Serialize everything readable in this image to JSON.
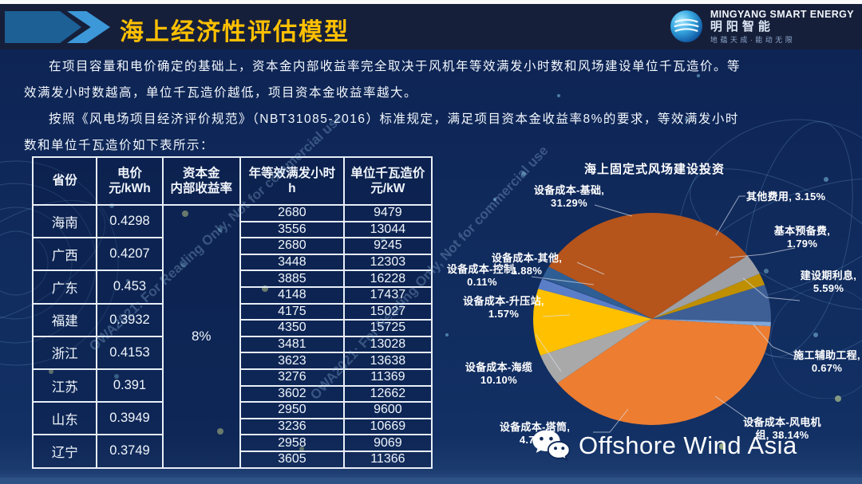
{
  "header": {
    "title": "海上经济性评估模型",
    "logo": {
      "line1": "MINGYANG SMART ENERGY",
      "line2": "明阳智能",
      "line3": "地蕴天成·能动无限"
    }
  },
  "intro": {
    "p1": "在项目容量和电价确定的基础上，资本金内部收益率完全取决于风机年等效满发小时数和风场建设单位千瓦造价。等效满发小时数越高，单位千瓦造价越低，项目资本金收益率越大。",
    "p2": "按照《风电场项目经济评价规范》（NBT31085-2016）标准规定，满足项目资本金收益率8%的要求，等效满发小时数和单位千瓦造价如下表所示："
  },
  "table": {
    "headers": [
      [
        "省份"
      ],
      [
        "电价",
        "元/kWh"
      ],
      [
        "资本金",
        "内部收益率"
      ],
      [
        "年等效满发小时",
        "h"
      ],
      [
        "单位千瓦造价",
        "元/kW"
      ]
    ],
    "rate": "8%",
    "provinces": [
      {
        "name": "海南",
        "price": "0.4298",
        "rows": [
          [
            "2680",
            "9479"
          ],
          [
            "3556",
            "13044"
          ]
        ]
      },
      {
        "name": "广西",
        "price": "0.4207",
        "rows": [
          [
            "2680",
            "9245"
          ],
          [
            "3448",
            "12303"
          ]
        ]
      },
      {
        "name": "广东",
        "price": "0.453",
        "rows": [
          [
            "3885",
            "16228"
          ],
          [
            "4148",
            "17437"
          ]
        ]
      },
      {
        "name": "福建",
        "price": "0.3932",
        "rows": [
          [
            "4175",
            "15027"
          ],
          [
            "4350",
            "15725"
          ]
        ]
      },
      {
        "name": "浙江",
        "price": "0.4153",
        "rows": [
          [
            "3481",
            "13028"
          ],
          [
            "3623",
            "13638"
          ]
        ]
      },
      {
        "name": "江苏",
        "price": "0.391",
        "rows": [
          [
            "3276",
            "11369"
          ],
          [
            "3602",
            "12662"
          ]
        ]
      },
      {
        "name": "山东",
        "price": "0.3949",
        "rows": [
          [
            "2950",
            "9600"
          ],
          [
            "3236",
            "10669"
          ]
        ]
      },
      {
        "name": "辽宁",
        "price": "0.3749",
        "rows": [
          [
            "2958",
            "9069"
          ],
          [
            "3605",
            "11366"
          ]
        ]
      }
    ]
  },
  "chart_data": {
    "type": "pie",
    "title": "海上固定式风场建设投资",
    "start_angle_deg": -60.5,
    "legend_position": "outside-labels",
    "slices": [
      {
        "name": "设备成本-基础",
        "pct": 31.29,
        "color": "#B5541B",
        "label_lines": [
          "设备成本-基础,",
          "31.29%"
        ]
      },
      {
        "name": "其他费用",
        "pct": 3.15,
        "color": "#9DA0A6",
        "label_lines": [
          "其他费用, 3.15%"
        ]
      },
      {
        "name": "基本预备费",
        "pct": 1.79,
        "color": "#BF8F00",
        "label_lines": [
          "基本预备费,",
          "1.79%"
        ]
      },
      {
        "name": "建设期利息",
        "pct": 5.59,
        "color": "#3E5F95",
        "label_lines": [
          "建设期利息,",
          "5.59%"
        ]
      },
      {
        "name": "施工辅助工程",
        "pct": 0.67,
        "color": "#7FA7D9",
        "label_lines": [
          "施工辅助工程,",
          "0.67%"
        ]
      },
      {
        "name": "设备成本-风电机组",
        "pct": 38.14,
        "color": "#ED7D31",
        "label_lines": [
          "设备成本-风电机",
          "组, 38.14%"
        ]
      },
      {
        "name": "设备成本-塔筒",
        "pct": 4.7,
        "color": "#A9A9A9",
        "label_lines": [
          "设备成本-塔筒,",
          "4.70%"
        ]
      },
      {
        "name": "设备成本-海缆",
        "pct": 10.1,
        "color": "#FFC000",
        "label_lines": [
          "设备成本-海缆",
          "10.10%"
        ]
      },
      {
        "name": "设备成本-升压站",
        "pct": 1.57,
        "color": "#5B7EC9",
        "label_lines": [
          "设备成本-升压站,",
          "1.57%"
        ]
      },
      {
        "name": "设备成本-控制",
        "pct": 0.11,
        "color": "#264478",
        "label_lines": [
          "设备成本-控制,",
          "0.11%"
        ]
      },
      {
        "name": "设备成本-其他",
        "pct": 1.88,
        "color": "#2F5E94",
        "label_lines": [
          "设备成本-其他,",
          "1.88%"
        ]
      }
    ]
  },
  "watermark": {
    "text": "OWA2021: For Reading Only, Not for commercial use"
  },
  "footer": {
    "brand": "Offshore Wind Asia"
  },
  "colors": {
    "accent_yellow": "#FFC000",
    "header_bg": "#161F3A",
    "slide_bg": "#102A5C",
    "table_border": "#E8EFF7"
  }
}
